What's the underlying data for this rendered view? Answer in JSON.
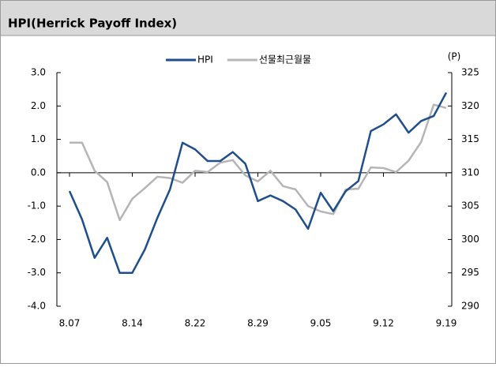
{
  "chart_data": {
    "type": "line",
    "title": "HPI(Herrick Payoff Index)",
    "y2_unit": "(P)",
    "categories": [
      "8.07",
      null,
      null,
      null,
      null,
      "8.14",
      null,
      null,
      null,
      null,
      "8.22",
      null,
      null,
      null,
      null,
      "8.29",
      null,
      null,
      null,
      null,
      "9.05",
      null,
      null,
      null,
      null,
      "9.12",
      null,
      null,
      null,
      null,
      "9.19"
    ],
    "series": [
      {
        "name": "HPI",
        "color": "#1f4e8c",
        "axis": "y",
        "values": [
          -0.55,
          -1.4,
          -2.55,
          -1.95,
          -3.0,
          -3.0,
          -2.3,
          -1.35,
          -0.5,
          0.9,
          0.7,
          0.35,
          0.35,
          0.62,
          0.27,
          -0.85,
          -0.68,
          -0.85,
          -1.1,
          -1.68,
          -0.6,
          -1.15,
          -0.55,
          -0.25,
          1.25,
          1.45,
          1.75,
          1.2,
          1.55,
          1.7,
          2.4
        ]
      },
      {
        "name": "선물최근월물",
        "color": "#b5b5b5",
        "axis": "y2",
        "values": [
          314.5,
          314.5,
          310.3,
          308.6,
          302.9,
          306.1,
          307.7,
          309.4,
          309.2,
          308.5,
          310.3,
          310.1,
          311.5,
          311.9,
          309.6,
          308.7,
          310.3,
          308.0,
          307.5,
          305.0,
          304.2,
          303.8,
          307.5,
          307.6,
          310.8,
          310.7,
          310.1,
          311.8,
          314.6,
          320.2,
          319.7
        ]
      }
    ],
    "ylim": [
      -4,
      3
    ],
    "yticks": [
      {
        "value": 3,
        "label": "3.0"
      },
      {
        "value": 2,
        "label": "2.0"
      },
      {
        "value": 1,
        "label": "1.0"
      },
      {
        "value": 0,
        "label": "0.0"
      },
      {
        "value": -1,
        "label": "-1.0"
      },
      {
        "value": -2,
        "label": "-2.0"
      },
      {
        "value": -3,
        "label": "-3.0"
      },
      {
        "value": -4,
        "label": "-4.0"
      }
    ],
    "y2lim": [
      290,
      325
    ],
    "y2ticks": [
      325,
      320,
      315,
      310,
      305,
      300,
      295,
      290
    ],
    "legend": "top"
  }
}
